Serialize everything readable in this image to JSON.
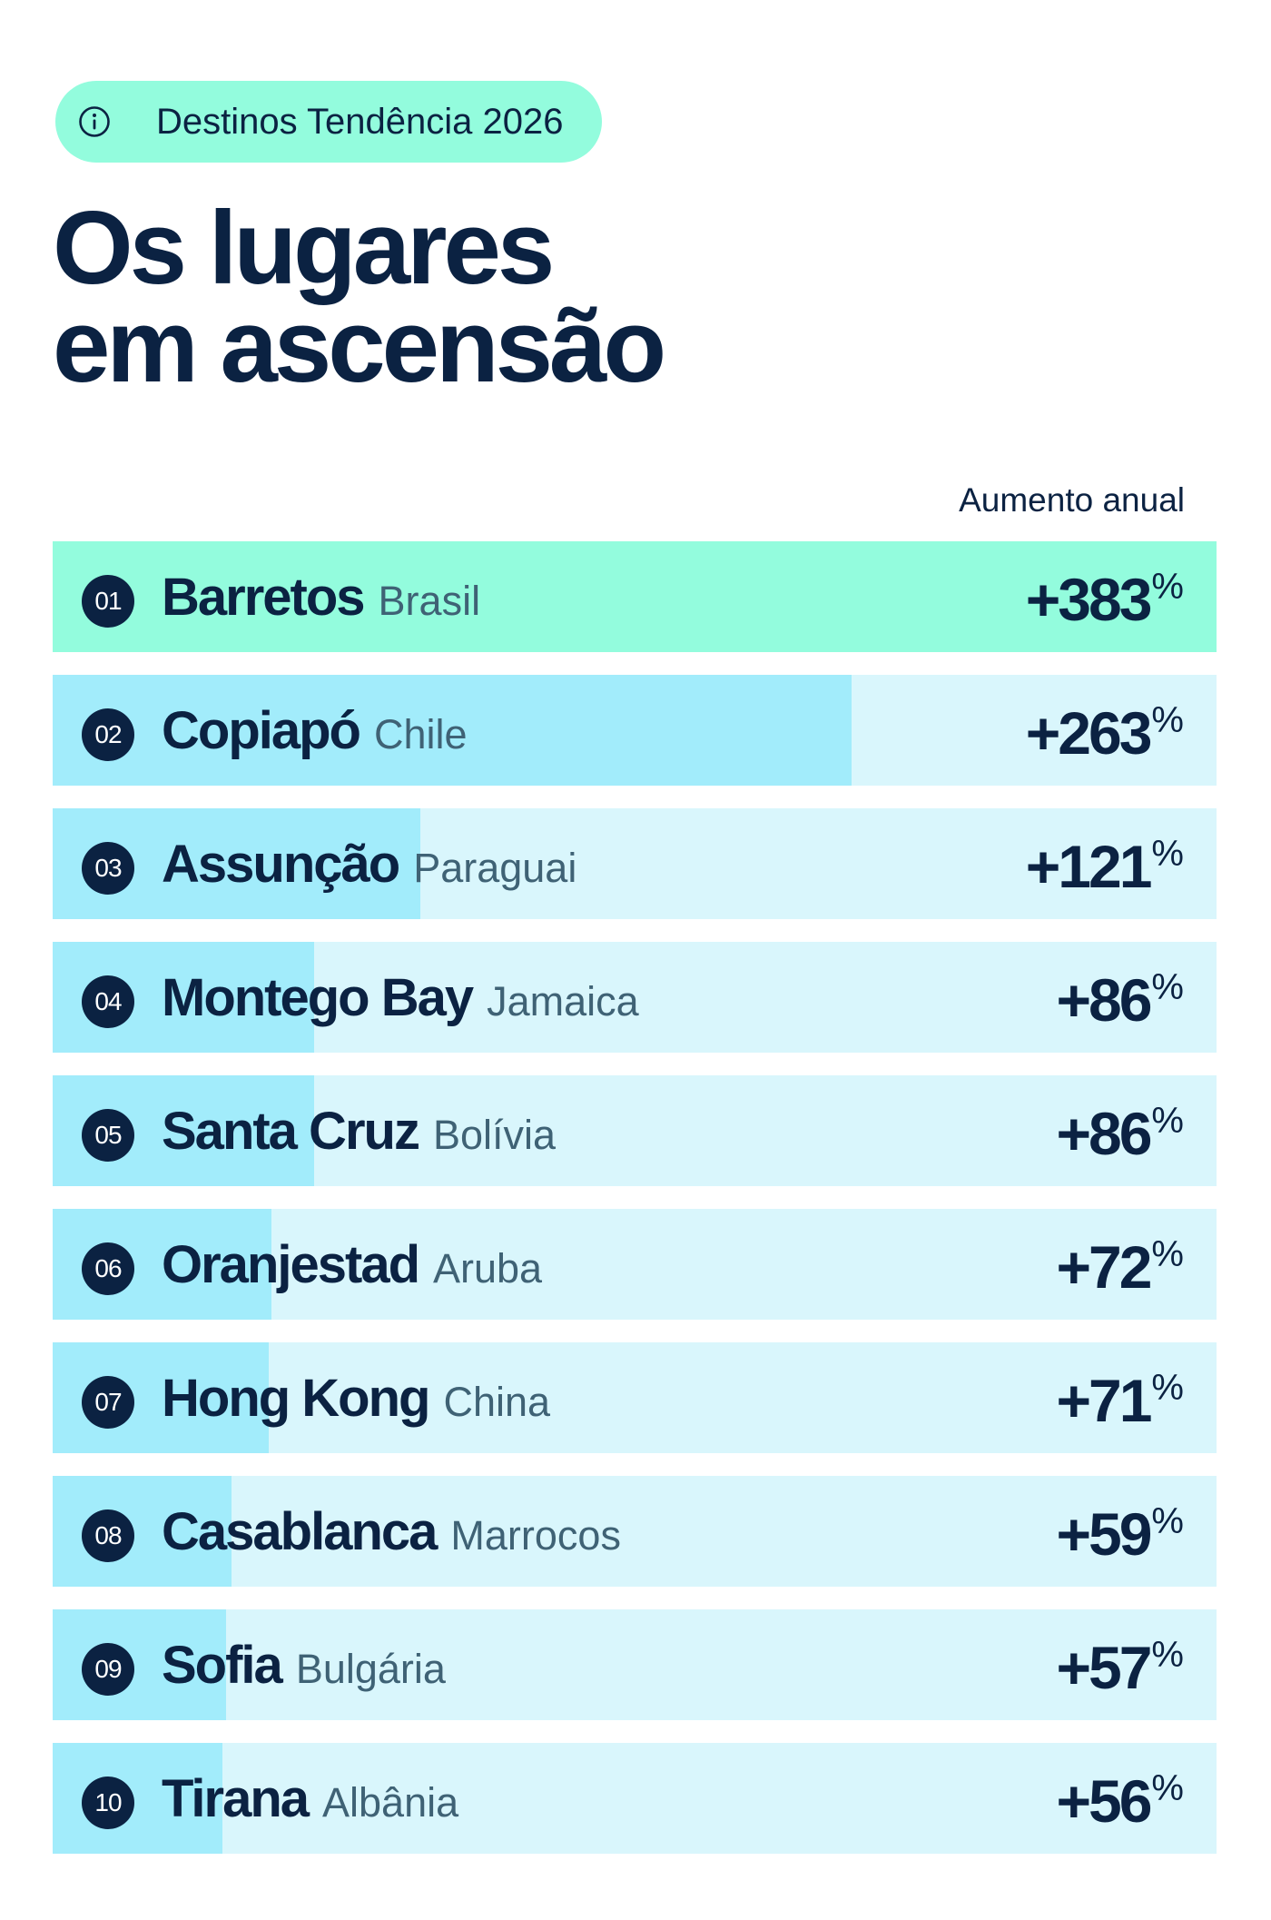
{
  "badge": {
    "icon": "info-icon",
    "text": "Destinos Tendência 2026"
  },
  "title": {
    "line1": "Os lugares",
    "line2": "em ascensão"
  },
  "colors": {
    "top_bar": "#93fcdd",
    "bar": "#a2ecfb",
    "track": "#d9f6fc",
    "text": "#0b2242",
    "muted": "#3f6275"
  },
  "chart_data": {
    "type": "bar",
    "orientation": "horizontal",
    "value_header": "Aumento anual",
    "unit": "%",
    "rows": [
      {
        "rank": "01",
        "city": "Barretos",
        "country": "Brasil",
        "value": 383,
        "display": "+383"
      },
      {
        "rank": "02",
        "city": "Copiapó",
        "country": "Chile",
        "value": 263,
        "display": "+263"
      },
      {
        "rank": "03",
        "city": "Assunção",
        "country": "Paraguai",
        "value": 121,
        "display": "+121"
      },
      {
        "rank": "04",
        "city": "Montego Bay",
        "country": "Jamaica",
        "value": 86,
        "display": "+86"
      },
      {
        "rank": "05",
        "city": "Santa Cruz",
        "country": "Bolívia",
        "value": 86,
        "display": "+86"
      },
      {
        "rank": "06",
        "city": "Oranjestad",
        "country": "Aruba",
        "value": 72,
        "display": "+72"
      },
      {
        "rank": "07",
        "city": "Hong Kong",
        "country": "China",
        "value": 71,
        "display": "+71"
      },
      {
        "rank": "08",
        "city": "Casablanca",
        "country": "Marrocos",
        "value": 59,
        "display": "+59"
      },
      {
        "rank": "09",
        "city": "Sofia",
        "country": "Bulgária",
        "value": 57,
        "display": "+57"
      },
      {
        "rank": "10",
        "city": "Tirana",
        "country": "Albânia",
        "value": 56,
        "display": "+56"
      }
    ]
  }
}
